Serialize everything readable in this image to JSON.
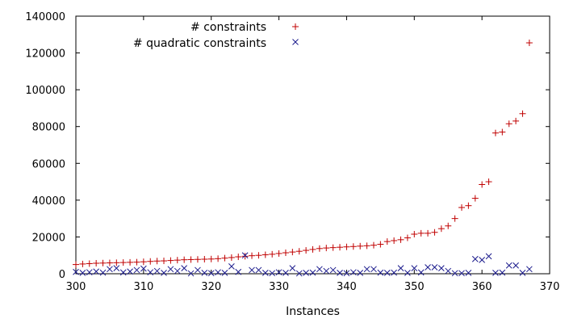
{
  "chart_data": {
    "type": "scatter",
    "title": "",
    "xlabel": "Instances",
    "ylabel": "",
    "xlim": [
      300,
      370
    ],
    "ylim": [
      0,
      140000
    ],
    "xticks": [
      300,
      310,
      320,
      330,
      340,
      350,
      360,
      370
    ],
    "yticks": [
      0,
      20000,
      40000,
      60000,
      80000,
      100000,
      120000,
      140000
    ],
    "grid": false,
    "legend_position": "top-center",
    "series": [
      {
        "name": "# constraints",
        "marker": "plus",
        "color": "#c00000",
        "x": [
          300,
          301,
          302,
          303,
          304,
          305,
          306,
          307,
          308,
          309,
          310,
          311,
          312,
          313,
          314,
          315,
          316,
          317,
          318,
          319,
          320,
          321,
          322,
          323,
          324,
          325,
          326,
          327,
          328,
          329,
          330,
          331,
          332,
          333,
          334,
          335,
          336,
          337,
          338,
          339,
          340,
          341,
          342,
          343,
          344,
          345,
          346,
          347,
          348,
          349,
          350,
          351,
          352,
          353,
          354,
          355,
          356,
          357,
          358,
          359,
          360,
          361,
          362,
          363,
          364,
          365,
          366,
          367
        ],
        "y": [
          5000,
          5300,
          5500,
          5700,
          5800,
          5900,
          6000,
          6100,
          6200,
          6300,
          6500,
          6700,
          6900,
          7000,
          7200,
          7400,
          7600,
          7700,
          7800,
          7900,
          8000,
          8200,
          8500,
          8800,
          9200,
          9500,
          9800,
          10000,
          10300,
          10600,
          11000,
          11400,
          11800,
          12200,
          12700,
          13200,
          13700,
          14000,
          14200,
          14400,
          14600,
          14800,
          15000,
          15200,
          15500,
          16000,
          17500,
          18000,
          18500,
          19500,
          21500,
          22000,
          22000,
          22500,
          24500,
          26000,
          30000,
          36000,
          37000,
          41000,
          48500,
          50000,
          76500,
          77000,
          81500,
          83000,
          87000,
          125500
        ]
      },
      {
        "name": "# quadratic constraints",
        "marker": "cross",
        "color": "#1a1a8c",
        "x": [
          300,
          301,
          302,
          303,
          304,
          305,
          306,
          307,
          308,
          309,
          310,
          311,
          312,
          313,
          314,
          315,
          316,
          317,
          318,
          319,
          320,
          321,
          322,
          323,
          324,
          325,
          326,
          327,
          328,
          329,
          330,
          331,
          332,
          333,
          334,
          335,
          336,
          337,
          338,
          339,
          340,
          341,
          342,
          343,
          344,
          345,
          346,
          347,
          348,
          349,
          350,
          351,
          352,
          353,
          354,
          355,
          356,
          357,
          358,
          359,
          360,
          361,
          362,
          363,
          364,
          365,
          366,
          367
        ],
        "y": [
          1000,
          500,
          800,
          1200,
          600,
          2500,
          3000,
          700,
          1200,
          2000,
          2800,
          800,
          1500,
          500,
          2500,
          1500,
          3000,
          200,
          2000,
          500,
          300,
          800,
          500,
          4000,
          1000,
          10000,
          2000,
          2000,
          500,
          300,
          800,
          500,
          3000,
          200,
          500,
          600,
          2500,
          1500,
          2000,
          500,
          300,
          800,
          500,
          2500,
          2500,
          600,
          500,
          600,
          3000,
          500,
          3000,
          700,
          3500,
          3500,
          3000,
          1500,
          300,
          300,
          500,
          8000,
          7500,
          9500,
          500,
          600,
          4500,
          4500,
          500,
          2500
        ]
      }
    ]
  }
}
